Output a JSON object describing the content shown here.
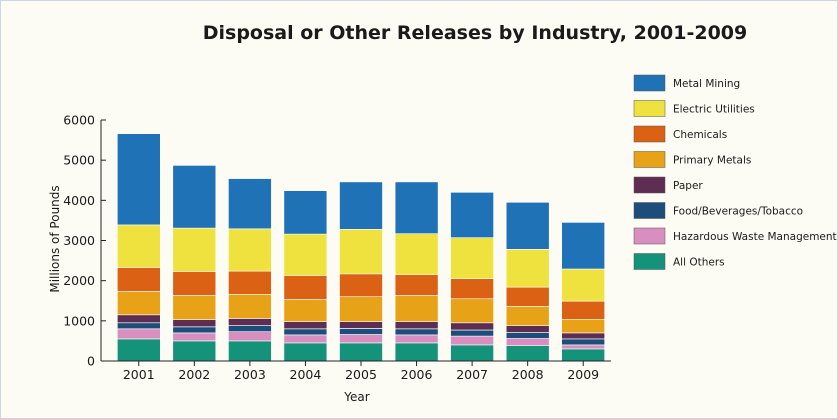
{
  "chart_data": {
    "type": "bar",
    "stacked": true,
    "title": "Disposal or Other Releases by Industry, 2001-2009",
    "xlabel": "Year",
    "ylabel": "Millions of Pounds",
    "ylim": [
      0,
      6000
    ],
    "yticks": [
      "0",
      "1000",
      "2000",
      "3000",
      "4000",
      "5000",
      "6000"
    ],
    "ytick_values": [
      0,
      1000,
      2000,
      3000,
      4000,
      5000,
      6000
    ],
    "legend_position": "right",
    "categories": [
      "2001",
      "2002",
      "2003",
      "2004",
      "2005",
      "2006",
      "2007",
      "2008",
      "2009"
    ],
    "series": [
      {
        "name": "All Others",
        "color": "#14937a",
        "values": [
          550,
          500,
          500,
          450,
          450,
          450,
          400,
          380,
          300
        ]
      },
      {
        "name": "Hazardous Waste Management",
        "color": "#d88fc0",
        "values": [
          250,
          200,
          230,
          200,
          210,
          200,
          220,
          180,
          100
        ]
      },
      {
        "name": "Food/Beverages/Tobacco",
        "color": "#1d4d7a",
        "values": [
          150,
          150,
          150,
          150,
          150,
          150,
          150,
          150,
          150
        ]
      },
      {
        "name": "Paper",
        "color": "#5e2d52",
        "values": [
          200,
          180,
          180,
          180,
          170,
          180,
          180,
          170,
          150
        ]
      },
      {
        "name": "Primary Metals",
        "color": "#e8a217",
        "values": [
          580,
          600,
          600,
          550,
          620,
          650,
          600,
          480,
          340
        ]
      },
      {
        "name": "Chemicals",
        "color": "#db6114",
        "values": [
          600,
          600,
          580,
          600,
          570,
          520,
          500,
          480,
          450
        ]
      },
      {
        "name": "Electric Utilities",
        "color": "#efe23e",
        "values": [
          1060,
          1080,
          1050,
          1030,
          1110,
          1020,
          1020,
          940,
          800
        ]
      },
      {
        "name": "Metal Mining",
        "color": "#1e72b5",
        "values": [
          2270,
          1560,
          1250,
          1080,
          1180,
          1290,
          1130,
          1170,
          1160
        ]
      }
    ],
    "legend_order": [
      "Metal Mining",
      "Electric Utilities",
      "Chemicals",
      "Primary Metals",
      "Paper",
      "Food/Beverages/Tobacco",
      "Hazardous Waste Management",
      "All Others"
    ]
  }
}
